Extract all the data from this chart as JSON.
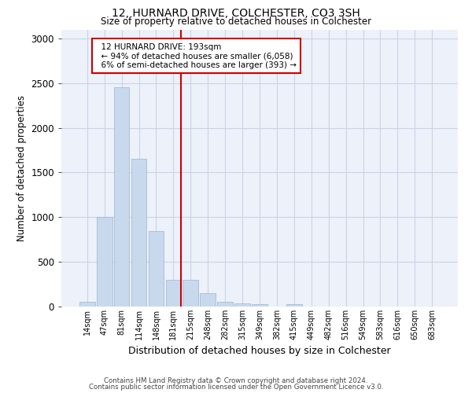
{
  "title1": "12, HURNARD DRIVE, COLCHESTER, CO3 3SH",
  "title2": "Size of property relative to detached houses in Colchester",
  "xlabel": "Distribution of detached houses by size in Colchester",
  "ylabel": "Number of detached properties",
  "categories": [
    "14sqm",
    "47sqm",
    "81sqm",
    "114sqm",
    "148sqm",
    "181sqm",
    "215sqm",
    "248sqm",
    "282sqm",
    "315sqm",
    "349sqm",
    "382sqm",
    "415sqm",
    "449sqm",
    "482sqm",
    "516sqm",
    "549sqm",
    "583sqm",
    "616sqm",
    "650sqm",
    "683sqm"
  ],
  "values": [
    50,
    1000,
    2450,
    1650,
    840,
    300,
    300,
    150,
    50,
    35,
    25,
    0,
    30,
    0,
    0,
    0,
    0,
    0,
    0,
    0,
    0
  ],
  "bar_color": "#c8d9ee",
  "bar_edge_color": "#9ab3d0",
  "vline_x": 5.45,
  "vline_color": "#cc0000",
  "annotation_text": "  12 HURNARD DRIVE: 193sqm\n  ← 94% of detached houses are smaller (6,058)\n  6% of semi-detached houses are larger (393) →",
  "annotation_box_color": "#ffffff",
  "annotation_box_edge": "#cc0000",
  "ylim": [
    0,
    3100
  ],
  "yticks": [
    0,
    500,
    1000,
    1500,
    2000,
    2500,
    3000
  ],
  "grid_color": "#c8d4e8",
  "background_color": "#edf1f9",
  "footnote1": "Contains HM Land Registry data © Crown copyright and database right 2024.",
  "footnote2": "Contains public sector information licensed under the Open Government Licence v3.0."
}
